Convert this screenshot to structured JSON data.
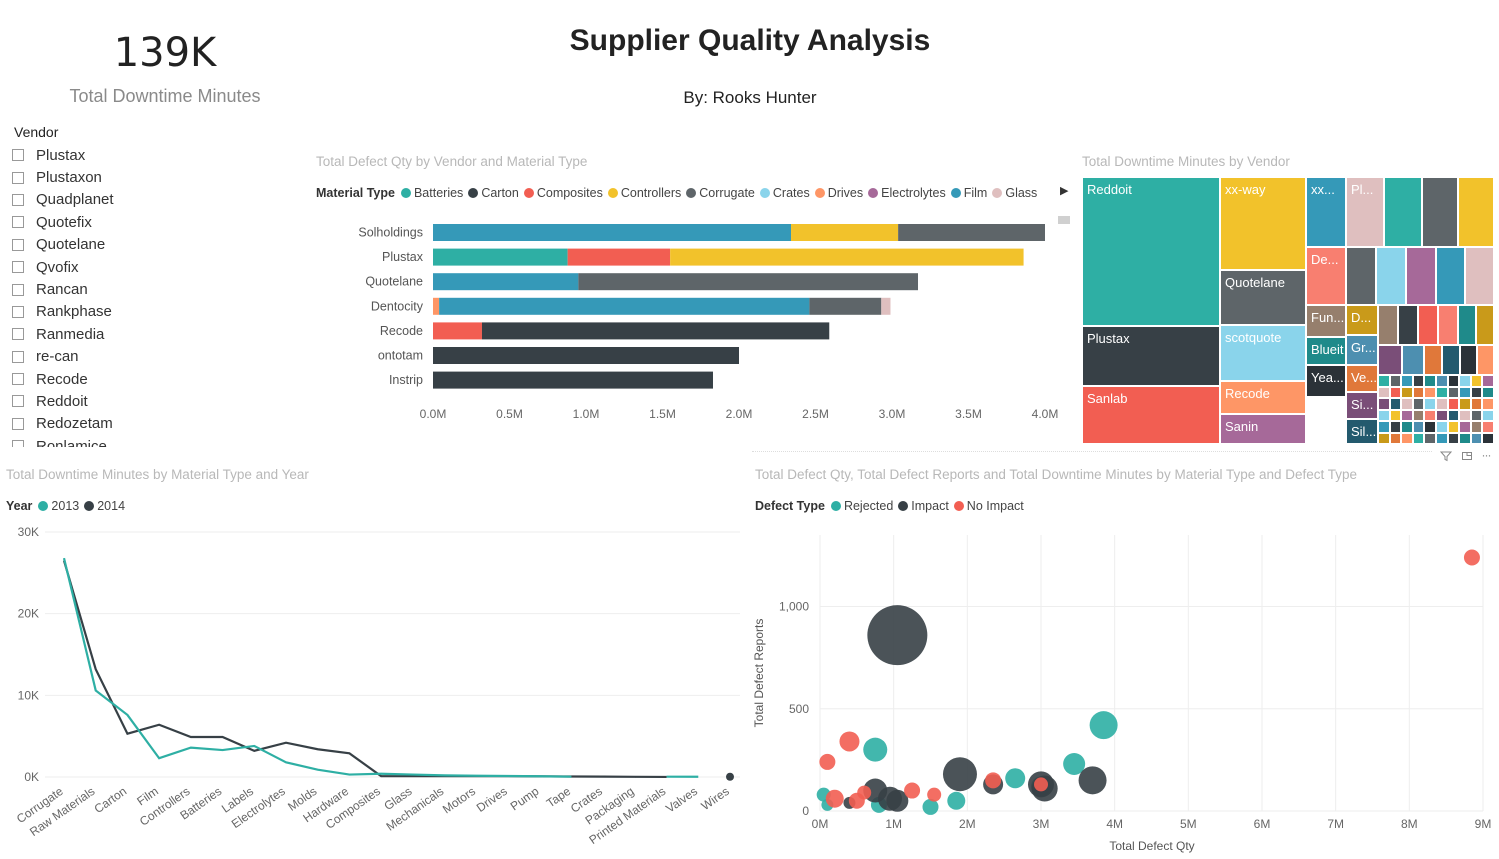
{
  "kpi": {
    "value": "139K",
    "label": "Total Downtime Minutes"
  },
  "header": {
    "title": "Supplier Quality Analysis",
    "subtitle": "By: Rooks Hunter"
  },
  "slicer": {
    "title": "Vendor",
    "items": [
      "Plustax",
      "Plustaxon",
      "Quadplanet",
      "Quotefix",
      "Quotelane",
      "Qvofix",
      "Rancan",
      "Rankphase",
      "Ranmedia",
      "re-can",
      "Recode",
      "Reddoit",
      "Redozetam",
      "Ronlamice"
    ]
  },
  "colors": {
    "Batteries": "#2eafa4",
    "Carton": "#374046",
    "Composites": "#f25e52",
    "Controllers": "#f2c22b",
    "Corrugate": "#5e6569",
    "Crates": "#8ad4eb",
    "Drives": "#fe9666",
    "Electrolytes": "#a66999",
    "Film": "#3599b8",
    "Glass": "#dfbfbf"
  },
  "bar_chart": {
    "title": "Total Defect Qty by Vendor and Material Type",
    "legend_title": "Material Type",
    "legend": [
      "Batteries",
      "Carton",
      "Composites",
      "Controllers",
      "Corrugate",
      "Crates",
      "Drives",
      "Electrolytes",
      "Film",
      "Glass"
    ],
    "x_ticks": [
      "0.0M",
      "0.5M",
      "1.0M",
      "1.5M",
      "2.0M",
      "2.5M",
      "3.0M",
      "3.5M",
      "4.0M"
    ]
  },
  "treemap": {
    "title": "Total Downtime Minutes by Vendor",
    "cells": [
      {
        "label": "Reddoit",
        "color": "#2eafa4"
      },
      {
        "label": "Plustax",
        "color": "#374046"
      },
      {
        "label": "Sanlab",
        "color": "#f25e52"
      },
      {
        "label": "xx-way",
        "color": "#f2c22b"
      },
      {
        "label": "Quotelane",
        "color": "#5e6569"
      },
      {
        "label": "scotquote",
        "color": "#8ad4eb"
      },
      {
        "label": "Recode",
        "color": "#fe9666"
      },
      {
        "label": "Sanin",
        "color": "#a66999"
      },
      {
        "label": "xx...",
        "color": "#3599b8"
      },
      {
        "label": "Pl...",
        "color": "#dfbfbf"
      },
      {
        "label": "De...",
        "color": "#f87f70"
      },
      {
        "label": "Fun...",
        "color": "#967f6d"
      },
      {
        "label": "D...",
        "color": "#c99a1a"
      },
      {
        "label": "Blueit",
        "color": "#1f8a8a"
      },
      {
        "label": "Gr...",
        "color": "#4d8fb0"
      },
      {
        "label": "Yea...",
        "color": "#2b3238"
      },
      {
        "label": "Ve...",
        "color": "#e0783a"
      },
      {
        "label": "Si...",
        "color": "#7a4e78"
      },
      {
        "label": "Sil...",
        "color": "#235a6e"
      }
    ]
  },
  "line_chart": {
    "title": "Total Downtime Minutes by Material Type and Year",
    "legend_title": "Year",
    "series_colors": [
      "#2eafa4",
      "#374046"
    ]
  },
  "scatter": {
    "title": "Total Defect Qty, Total Defect Reports and Total Downtime Minutes by Material Type and Defect Type",
    "legend_title": "Defect Type",
    "legend": [
      {
        "name": "Rejected",
        "color": "#2eafa4"
      },
      {
        "name": "Impact",
        "color": "#374046"
      },
      {
        "name": "No Impact",
        "color": "#f25e52"
      }
    ]
  },
  "icons": [
    "filter-icon",
    "focus-mode-icon",
    "more-options-icon",
    "scroll-right-icon"
  ],
  "chart_data": [
    {
      "type": "bar",
      "orientation": "horizontal-stacked",
      "title": "Total Defect Qty by Vendor and Material Type",
      "xlim": [
        0,
        4.1
      ],
      "categories": [
        "Solholdings",
        "Plustax",
        "Quotelane",
        "Dentocity",
        "Recode",
        "ontotam",
        "Instrip"
      ],
      "series": [
        {
          "name": "Drives",
          "values": [
            0,
            0,
            0,
            0.04,
            0,
            0,
            0
          ]
        },
        {
          "name": "Film",
          "values": [
            2.34,
            0,
            0.95,
            2.42,
            0,
            0,
            0
          ]
        },
        {
          "name": "Batteries",
          "values": [
            0,
            0.88,
            0,
            0,
            0,
            0,
            0
          ]
        },
        {
          "name": "Composites",
          "values": [
            0,
            0.67,
            0,
            0,
            0.32,
            0,
            0
          ]
        },
        {
          "name": "Controllers",
          "values": [
            0.7,
            2.31,
            0,
            0,
            0,
            0,
            0
          ]
        },
        {
          "name": "Carton",
          "values": [
            0,
            0,
            0,
            0,
            2.27,
            2.0,
            1.83
          ]
        },
        {
          "name": "Corrugate",
          "values": [
            0.96,
            0,
            2.22,
            0.47,
            0,
            0,
            0
          ]
        },
        {
          "name": "Glass",
          "values": [
            0,
            0,
            0,
            0.06,
            0,
            0,
            0
          ]
        }
      ]
    },
    {
      "type": "line",
      "title": "Total Downtime Minutes by Material Type and Year",
      "ylim": [
        0,
        30000
      ],
      "y_ticks": [
        "0K",
        "10K",
        "20K",
        "30K"
      ],
      "categories": [
        "Corrugate",
        "Raw Materials",
        "Carton",
        "Film",
        "Controllers",
        "Batteries",
        "Labels",
        "Electrolytes",
        "Molds",
        "Hardware",
        "Composites",
        "Glass",
        "Mechanicals",
        "Motors",
        "Drives",
        "Pump",
        "Tape",
        "Crates",
        "Packaging",
        "Printed Materials",
        "Valves",
        "Wires"
      ],
      "series": [
        {
          "name": "2013",
          "values": [
            26800,
            10600,
            7600,
            2300,
            3600,
            3300,
            3800,
            1800,
            900,
            300,
            400,
            300,
            200,
            150,
            120,
            90,
            40,
            null,
            null,
            40,
            30,
            null
          ]
        },
        {
          "name": "2014",
          "values": [
            26500,
            13200,
            5300,
            6400,
            4900,
            4900,
            3200,
            4200,
            3400,
            2900,
            100,
            100,
            100,
            100,
            100,
            80,
            60,
            50,
            20,
            10,
            null,
            30
          ]
        }
      ]
    },
    {
      "type": "scatter",
      "title": "Total Defect Qty, Total Defect Reports and Total Downtime Minutes by Material Type and Defect Type",
      "xlabel": "Total Defect Qty",
      "ylabel": "Total Defect Reports",
      "x_ticks": [
        "0M",
        "1M",
        "2M",
        "3M",
        "4M",
        "5M",
        "6M",
        "7M",
        "8M",
        "9M"
      ],
      "y_ticks": [
        "0",
        "500",
        "1,000"
      ],
      "xlim": [
        0,
        9
      ],
      "ylim": [
        0,
        1350
      ],
      "series": [
        {
          "name": "Rejected",
          "points": [
            [
              0.05,
              80,
              7
            ],
            [
              0.1,
              30,
              6
            ],
            [
              0.75,
              300,
              12
            ],
            [
              0.8,
              30,
              8
            ],
            [
              1.5,
              20,
              8
            ],
            [
              1.85,
              50,
              9
            ],
            [
              2.65,
              160,
              10
            ],
            [
              3.0,
              120,
              10
            ],
            [
              3.45,
              230,
              11
            ],
            [
              3.85,
              420,
              14
            ]
          ]
        },
        {
          "name": "Impact",
          "points": [
            [
              0.4,
              40,
              6
            ],
            [
              0.75,
              100,
              12
            ],
            [
              1.05,
              860,
              30
            ],
            [
              0.95,
              60,
              12
            ],
            [
              1.05,
              50,
              11
            ],
            [
              1.9,
              180,
              17
            ],
            [
              2.35,
              130,
              10
            ],
            [
              3.0,
              130,
              13
            ],
            [
              3.05,
              110,
              13
            ],
            [
              3.7,
              150,
              14
            ]
          ]
        },
        {
          "name": "No Impact",
          "points": [
            [
              0.1,
              240,
              8
            ],
            [
              0.2,
              60,
              9
            ],
            [
              0.4,
              340,
              10
            ],
            [
              0.5,
              50,
              8
            ],
            [
              0.6,
              90,
              7
            ],
            [
              1.25,
              100,
              8
            ],
            [
              1.55,
              80,
              7
            ],
            [
              2.35,
              150,
              8
            ],
            [
              3.0,
              130,
              7
            ],
            [
              8.85,
              1240,
              8
            ]
          ]
        }
      ]
    }
  ]
}
